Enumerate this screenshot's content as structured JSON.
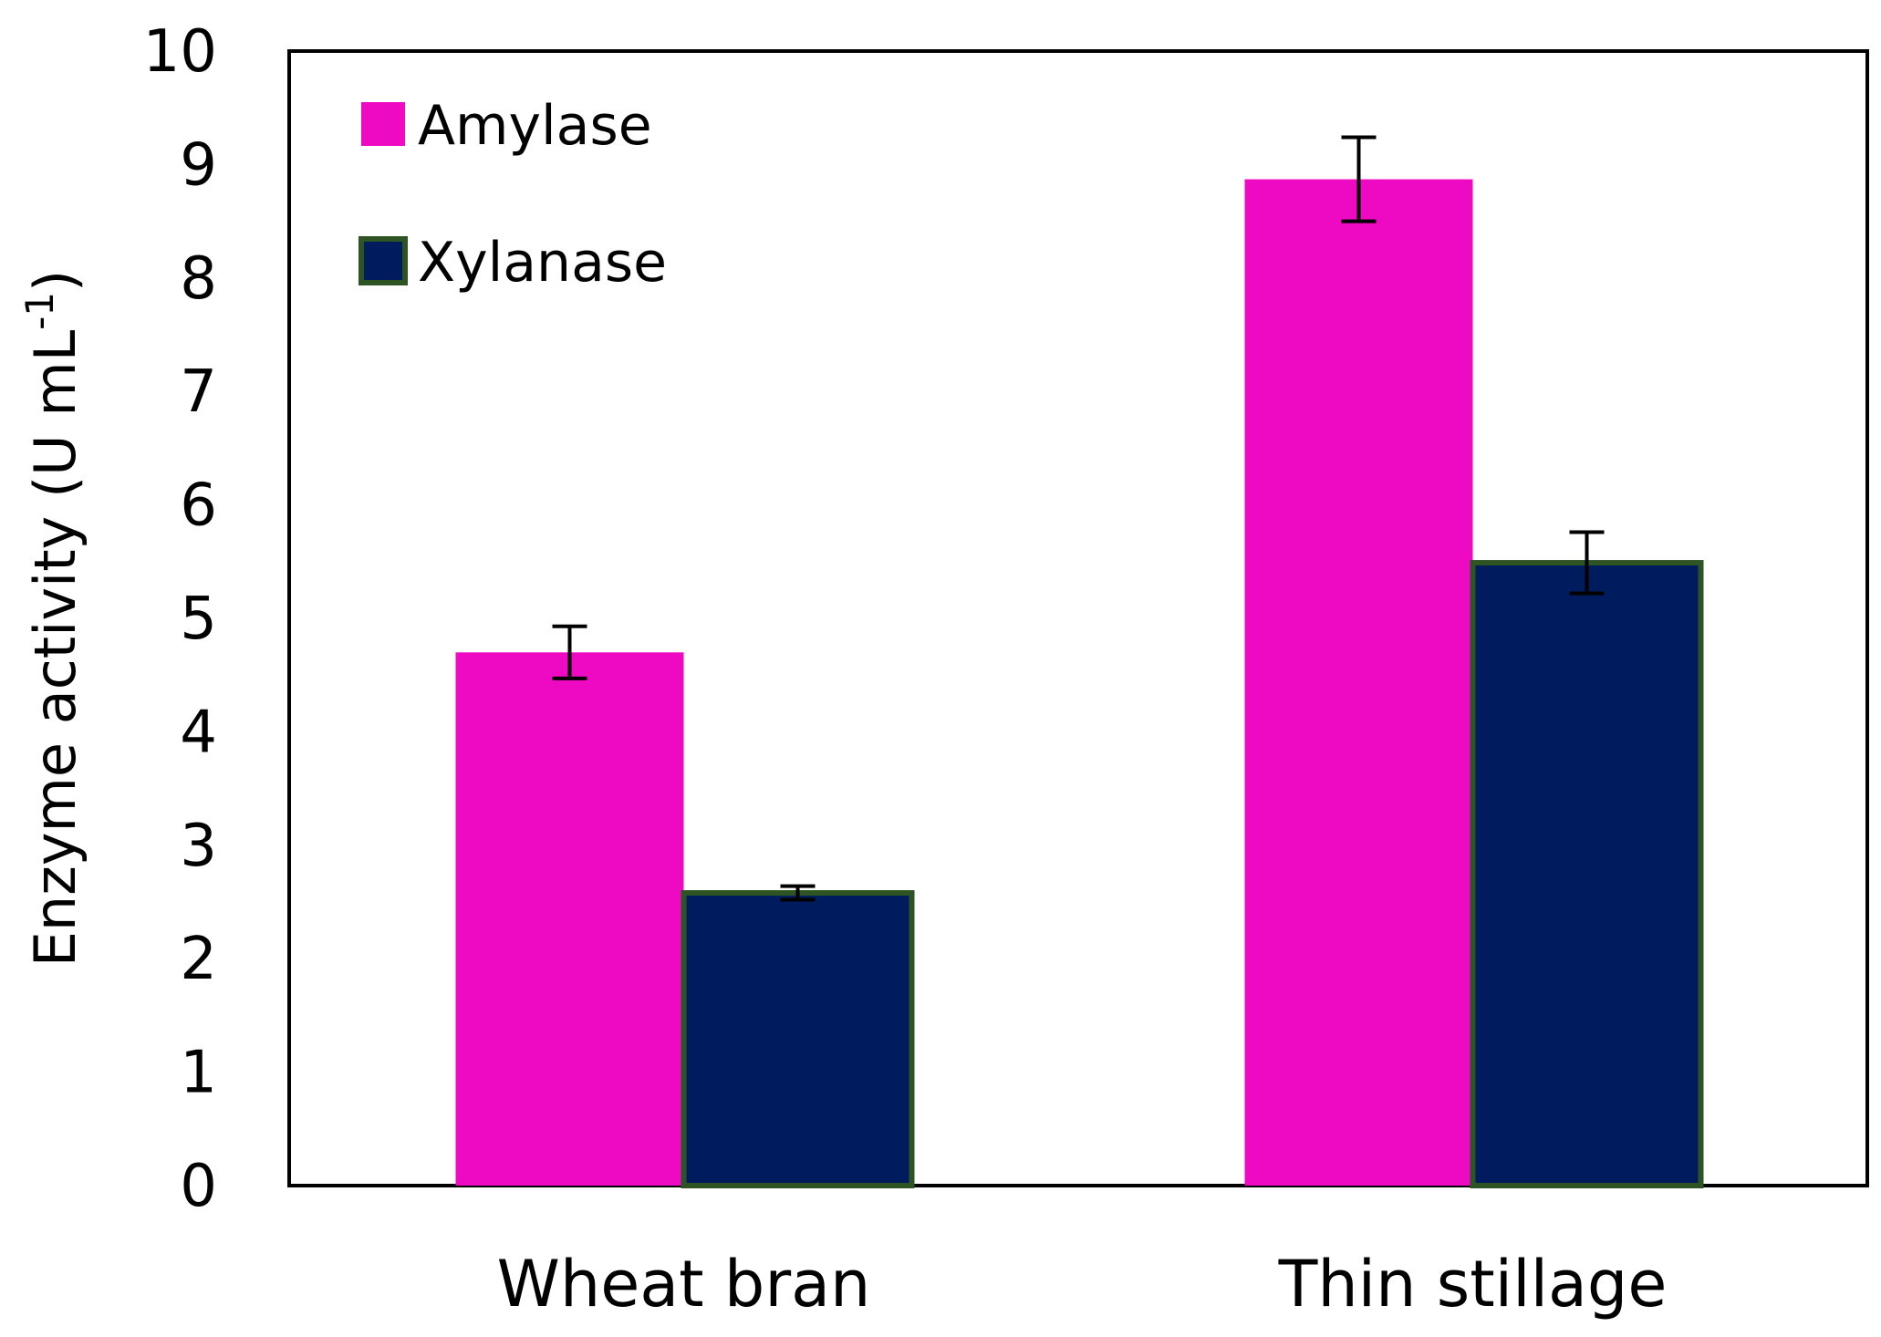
{
  "chart_data": {
    "type": "bar",
    "title": "",
    "xlabel": "",
    "ylabel": "Enzyme activity (U mL",
    "ylabel_superscript": "-1",
    "ylabel_suffix": ")",
    "ylim": [
      0,
      10
    ],
    "yticks": [
      "0",
      "1",
      "2",
      "3",
      "4",
      "5",
      "6",
      "7",
      "8",
      "9",
      "10"
    ],
    "categories": [
      "Wheat bran",
      "Thin stillage"
    ],
    "series": [
      {
        "name": "Amylase",
        "values": [
          4.7,
          8.87
        ],
        "errors": [
          0.23,
          0.37
        ],
        "color": "#EE0AC2",
        "border": "#EE0AC2"
      },
      {
        "name": "Xylanase",
        "values": [
          2.58,
          5.49
        ],
        "errors": [
          0.06,
          0.27
        ],
        "color": "#001B5E",
        "border": "#2E5424"
      }
    ],
    "grid": false,
    "legend": "top-left"
  }
}
